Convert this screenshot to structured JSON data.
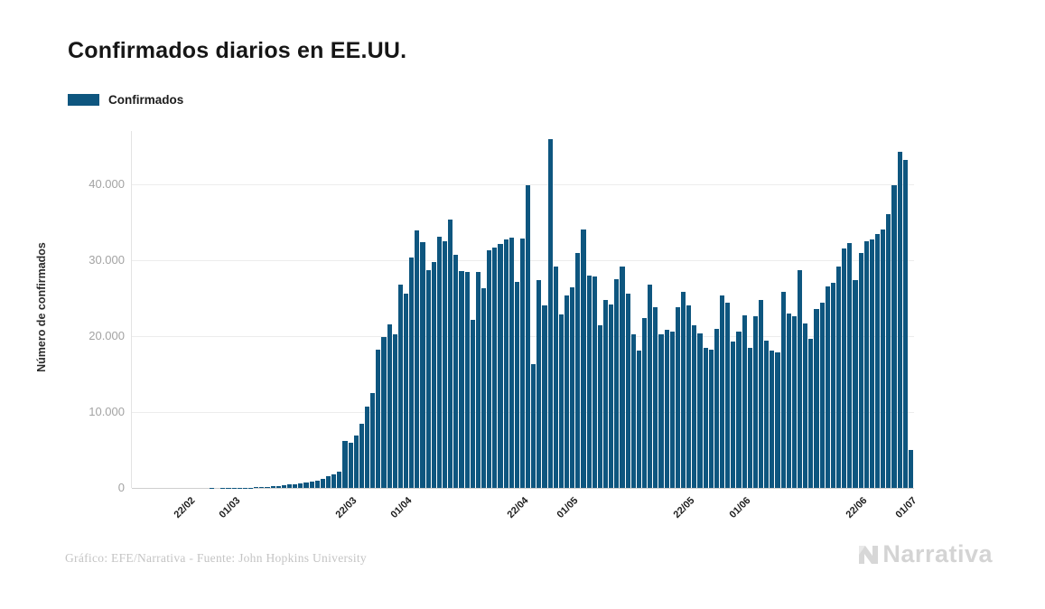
{
  "page": {
    "background": "#ffffff"
  },
  "header": {
    "title": "Confirmados diarios en EE.UU."
  },
  "legend": {
    "label": "Confirmados",
    "swatch_color": "#0e567f"
  },
  "footer": {
    "credit": "Gráfico: EFE/Narrativa - Fuente: John Hopkins University",
    "logo_text": "Narrativa"
  },
  "chart_data": {
    "type": "bar",
    "title": "Confirmados diarios en EE.UU.",
    "series_name": "Confirmados",
    "xlabel": "",
    "ylabel": "Número de confirmados",
    "bar_color": "#0e567f",
    "grid": true,
    "legend_position": "top-left",
    "ylim": [
      0,
      47000
    ],
    "yticks": {
      "values": [
        0,
        10000,
        20000,
        30000,
        40000
      ],
      "labels": [
        "0",
        "10.000",
        "20.000",
        "30.000",
        "40.000"
      ]
    },
    "xticks": {
      "labels": [
        "22/02",
        "01/03",
        "22/03",
        "01/04",
        "22/04",
        "01/05",
        "22/05",
        "01/06",
        "22/06",
        "01/07"
      ],
      "indices": [
        10,
        18,
        39,
        49,
        70,
        79,
        100,
        110,
        131,
        140
      ]
    },
    "dates": [
      "12/02",
      "13/02",
      "14/02",
      "15/02",
      "16/02",
      "17/02",
      "18/02",
      "19/02",
      "20/02",
      "21/02",
      "22/02",
      "23/02",
      "24/02",
      "25/02",
      "26/02",
      "27/02",
      "28/02",
      "29/02",
      "01/03",
      "02/03",
      "03/03",
      "04/03",
      "05/03",
      "06/03",
      "07/03",
      "08/03",
      "09/03",
      "10/03",
      "11/03",
      "12/03",
      "13/03",
      "14/03",
      "15/03",
      "16/03",
      "17/03",
      "18/03",
      "19/03",
      "20/03",
      "21/03",
      "22/03",
      "23/03",
      "24/03",
      "25/03",
      "26/03",
      "27/03",
      "28/03",
      "29/03",
      "30/03",
      "31/03",
      "01/04",
      "02/04",
      "03/04",
      "04/04",
      "05/04",
      "06/04",
      "07/04",
      "08/04",
      "09/04",
      "10/04",
      "11/04",
      "12/04",
      "13/04",
      "14/04",
      "15/04",
      "16/04",
      "17/04",
      "18/04",
      "19/04",
      "20/04",
      "21/04",
      "22/04",
      "23/04",
      "24/04",
      "25/04",
      "26/04",
      "27/04",
      "28/04",
      "29/04",
      "30/04",
      "01/05",
      "02/05",
      "03/05",
      "04/05",
      "05/05",
      "06/05",
      "07/05",
      "08/05",
      "09/05",
      "10/05",
      "11/05",
      "12/05",
      "13/05",
      "14/05",
      "15/05",
      "16/05",
      "17/05",
      "18/05",
      "19/05",
      "20/05",
      "21/05",
      "22/05",
      "23/05",
      "24/05",
      "25/05",
      "26/05",
      "27/05",
      "28/05",
      "29/05",
      "30/05",
      "31/05",
      "01/06",
      "02/06",
      "03/06",
      "04/06",
      "05/06",
      "06/06",
      "07/06",
      "08/06",
      "09/06",
      "10/06",
      "11/06",
      "12/06",
      "13/06",
      "14/06",
      "15/06",
      "16/06",
      "17/06",
      "18/06",
      "19/06",
      "20/06",
      "21/06",
      "22/06",
      "23/06",
      "24/06",
      "25/06",
      "26/06",
      "27/06",
      "28/06",
      "29/06",
      "30/06",
      "01/07"
    ],
    "values": [
      0,
      1,
      2,
      1,
      2,
      3,
      2,
      3,
      4,
      6,
      5,
      4,
      6,
      8,
      10,
      9,
      12,
      16,
      20,
      24,
      31,
      45,
      68,
      79,
      110,
      250,
      290,
      350,
      420,
      500,
      590,
      700,
      850,
      950,
      1200,
      1500,
      1800,
      2100,
      6200,
      5900,
      6900,
      8500,
      10700,
      12500,
      18250,
      19850,
      21600,
      20250,
      26800,
      25600,
      30350,
      33950,
      32350,
      28750,
      29750,
      33100,
      32500,
      35300,
      30750,
      28600,
      28500,
      22200,
      28400,
      26300,
      31300,
      31700,
      32100,
      32700,
      33000,
      27100,
      32800,
      39900,
      16300,
      27400,
      24000,
      46000,
      29200,
      22800,
      25400,
      26400,
      31000,
      34100,
      28000,
      27800,
      21400,
      24800,
      24200,
      27500,
      29200,
      25600,
      20200,
      18050,
      22400,
      26800,
      23800,
      20200,
      20800,
      20600,
      23800,
      25800,
      24000,
      21400,
      20400,
      18400,
      18200,
      21000,
      25400,
      24400,
      19250,
      20600,
      22700,
      18450,
      22600,
      24800,
      19400,
      18050,
      17850,
      25800,
      23000,
      22600,
      28700,
      21700,
      19600,
      23600,
      24400,
      26600,
      27000,
      29200,
      31500,
      32300,
      27400,
      31000,
      32500,
      32700,
      33500,
      34000,
      36100,
      39900,
      44250,
      43250,
      4950
    ]
  }
}
